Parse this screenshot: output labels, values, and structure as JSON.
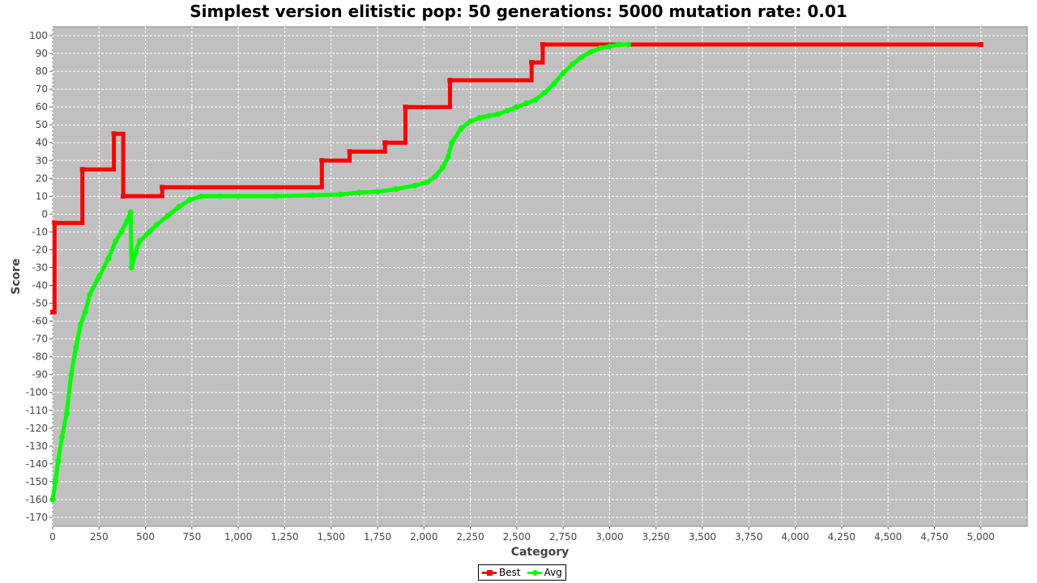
{
  "chart_data": {
    "type": "line",
    "title": "Simplest version elitistic pop: 50 generations: 5000 mutation rate: 0.01",
    "xlabel": "Category",
    "ylabel": "Score",
    "xlim": [
      0,
      5250
    ],
    "ylim": [
      -175,
      105
    ],
    "x_ticks": [
      "0",
      "250",
      "500",
      "750",
      "1,000",
      "1,250",
      "1,500",
      "1,750",
      "2,000",
      "2,250",
      "2,500",
      "2,750",
      "3,000",
      "3,250",
      "3,500",
      "3,750",
      "4,000",
      "4,250",
      "4,500",
      "4,750",
      "5,000"
    ],
    "y_ticks": [
      "100",
      "90",
      "80",
      "70",
      "60",
      "50",
      "40",
      "30",
      "20",
      "10",
      "0",
      "-10",
      "-20",
      "-30",
      "-40",
      "-50",
      "-60",
      "-70",
      "-80",
      "-90",
      "-100",
      "-110",
      "-120",
      "-130",
      "-140",
      "-150",
      "-160",
      "-170"
    ],
    "grid": true,
    "background_color": "#c0c0c0",
    "legend_position": "bottom",
    "series": [
      {
        "name": "Best",
        "color": "#ff0000",
        "marker": "square",
        "step": true,
        "points": [
          [
            0,
            -55
          ],
          [
            10,
            -5
          ],
          [
            160,
            25
          ],
          [
            330,
            45
          ],
          [
            380,
            10
          ],
          [
            590,
            15
          ],
          [
            1450,
            30
          ],
          [
            1600,
            35
          ],
          [
            1790,
            40
          ],
          [
            1900,
            60
          ],
          [
            2140,
            75
          ],
          [
            2580,
            85
          ],
          [
            2640,
            95
          ],
          [
            5000,
            95
          ]
        ]
      },
      {
        "name": "Avg",
        "color": "#00ff00",
        "marker": "circle",
        "step": false,
        "points": [
          [
            0,
            -160
          ],
          [
            15,
            -150
          ],
          [
            30,
            -138
          ],
          [
            50,
            -125
          ],
          [
            75,
            -112
          ],
          [
            100,
            -90
          ],
          [
            125,
            -75
          ],
          [
            150,
            -62
          ],
          [
            175,
            -55
          ],
          [
            200,
            -45
          ],
          [
            250,
            -35
          ],
          [
            300,
            -25
          ],
          [
            340,
            -15
          ],
          [
            370,
            -10
          ],
          [
            400,
            -4
          ],
          [
            420,
            1
          ],
          [
            425,
            -30
          ],
          [
            445,
            -22
          ],
          [
            470,
            -15
          ],
          [
            520,
            -10
          ],
          [
            560,
            -6
          ],
          [
            620,
            -1
          ],
          [
            680,
            4
          ],
          [
            740,
            8
          ],
          [
            800,
            10
          ],
          [
            900,
            10
          ],
          [
            1000,
            10
          ],
          [
            1200,
            10
          ],
          [
            1400,
            10.5
          ],
          [
            1550,
            11
          ],
          [
            1650,
            12
          ],
          [
            1750,
            12.5
          ],
          [
            1850,
            14
          ],
          [
            1950,
            16
          ],
          [
            2020,
            18
          ],
          [
            2060,
            21
          ],
          [
            2100,
            26
          ],
          [
            2130,
            32
          ],
          [
            2150,
            40
          ],
          [
            2200,
            48
          ],
          [
            2250,
            52
          ],
          [
            2300,
            54
          ],
          [
            2350,
            55
          ],
          [
            2400,
            56
          ],
          [
            2450,
            58
          ],
          [
            2500,
            60
          ],
          [
            2550,
            62
          ],
          [
            2600,
            64
          ],
          [
            2650,
            68
          ],
          [
            2700,
            73
          ],
          [
            2750,
            79
          ],
          [
            2800,
            84
          ],
          [
            2850,
            88
          ],
          [
            2900,
            91
          ],
          [
            2950,
            93
          ],
          [
            3000,
            94
          ],
          [
            3050,
            95
          ],
          [
            3100,
            95
          ]
        ]
      }
    ]
  }
}
